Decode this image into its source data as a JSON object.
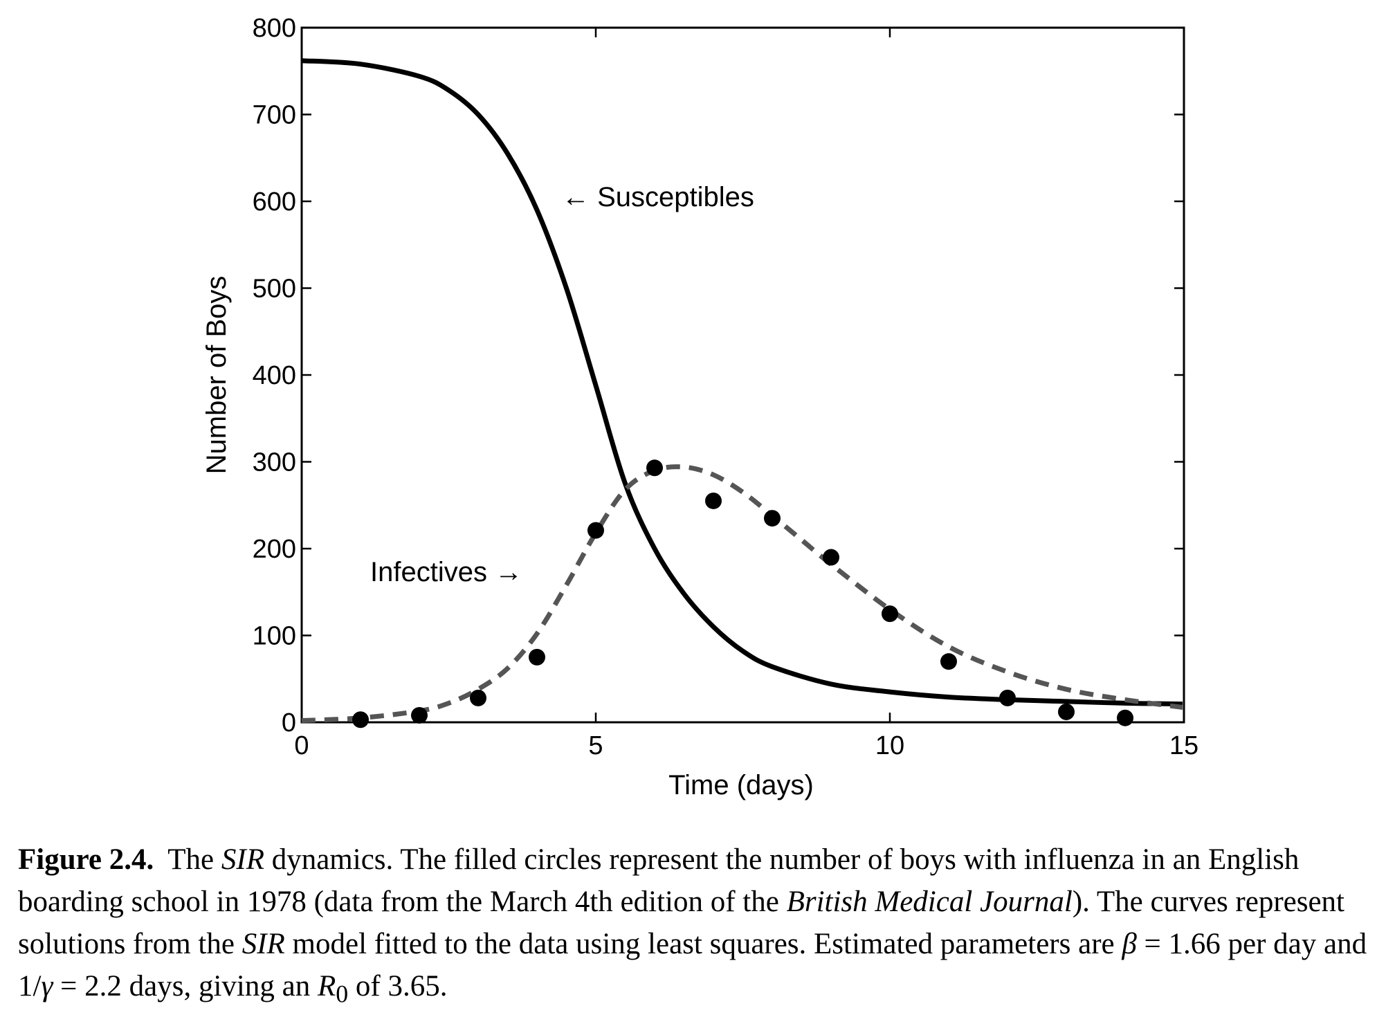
{
  "chart_data": {
    "type": "line",
    "xlabel": "Time (days)",
    "ylabel": "Number of Boys",
    "xlim": [
      0,
      15
    ],
    "ylim": [
      0,
      800
    ],
    "xticks": [
      0,
      5,
      10,
      15
    ],
    "yticks": [
      0,
      100,
      200,
      300,
      400,
      500,
      600,
      700,
      800
    ],
    "grid": false,
    "series": [
      {
        "name": "Susceptibles",
        "style": "solid",
        "color": "#000000",
        "x": [
          0,
          1,
          2,
          2.5,
          3,
          3.5,
          4,
          4.5,
          5,
          5.5,
          6,
          6.5,
          7,
          7.5,
          8,
          9,
          10,
          11,
          12,
          13,
          14,
          15
        ],
        "y": [
          762,
          758,
          744,
          728,
          700,
          655,
          590,
          500,
          388,
          275,
          200,
          148,
          110,
          82,
          64,
          44,
          35,
          29,
          26,
          24,
          22,
          21
        ]
      },
      {
        "name": "Infectives",
        "style": "dashed",
        "color": "#555555",
        "x": [
          0,
          1,
          2,
          2.5,
          3,
          3.5,
          4,
          4.5,
          5,
          5.5,
          6,
          6.5,
          7,
          7.5,
          8,
          8.5,
          9,
          10,
          11,
          12,
          13,
          14,
          15
        ],
        "y": [
          2,
          5,
          13,
          22,
          38,
          62,
          102,
          158,
          218,
          268,
          290,
          294,
          285,
          265,
          238,
          210,
          182,
          130,
          87,
          58,
          38,
          26,
          17
        ]
      }
    ],
    "points": {
      "x": [
        1,
        2,
        3,
        4,
        5,
        6,
        7,
        8,
        9,
        10,
        11,
        12,
        13,
        14
      ],
      "y": [
        3,
        8,
        28,
        75,
        221,
        293,
        255,
        235,
        190,
        125,
        70,
        28,
        12,
        5
      ]
    },
    "annotations": [
      {
        "text": "← Susceptibles"
      },
      {
        "text": "Infectives →"
      }
    ]
  },
  "caption": {
    "figure_label": "Figure 2.4.",
    "part1": "The",
    "sir1": "SIR",
    "part2": "dynamics. The filled circles represent the number of boys with influenza in an English boarding school in 1978 (data from the March 4th edition of the",
    "journal": "British Medical Journal",
    "part3": "). The curves represent solutions from the",
    "sir2": "SIR",
    "part4": "model fitted to the data using least squares. Estimated parameters are",
    "beta": "β",
    "part5": "= 1.66 per day and 1/",
    "gamma": "γ",
    "part6": "= 2.2 days, giving an",
    "r0": "R",
    "r0_sub": "0",
    "part7": "of 3.65."
  }
}
